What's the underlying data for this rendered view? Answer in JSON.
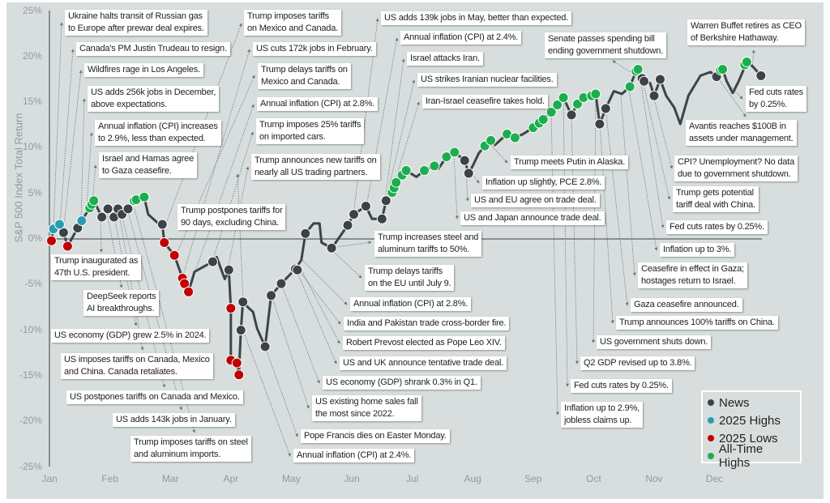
{
  "chart_data": {
    "type": "line",
    "ylabel": "S&P 500 Index Total Return",
    "ylim": [
      -25,
      25
    ],
    "yticks": [
      "25%",
      "20%",
      "15%",
      "10%",
      "5%",
      "0%",
      "-5%",
      "-10%",
      "-15%",
      "-20%",
      "-25%"
    ],
    "xticks": [
      "Jan",
      "Feb",
      "Mar",
      "Apr",
      "May",
      "Jun",
      "Jul",
      "Aug",
      "Sep",
      "Oct",
      "Nov",
      "Dec"
    ],
    "grid": false,
    "legend_position": "bottom-right",
    "colors": {
      "line": "#3d4448",
      "news": "#3c4247",
      "high": "#2a9db5",
      "low": "#c00000",
      "ath": "#1cae4e"
    },
    "series": [
      [
        "Jan 2",
        -0.2
      ],
      [
        "Jan 3",
        1.1
      ],
      [
        "Jan 6",
        1.6
      ],
      [
        "Jan 8",
        0.7
      ],
      [
        "Jan 10",
        -0.8
      ],
      [
        "Jan 15",
        1.2
      ],
      [
        "Jan 17",
        2.0
      ],
      [
        "Jan 21",
        3.4
      ],
      [
        "Jan 23",
        4.2
      ],
      [
        "Jan 27",
        2.4
      ],
      [
        "Jan 30",
        3.3
      ],
      [
        "Feb 3",
        2.4
      ],
      [
        "Feb 5",
        3.3
      ],
      [
        "Feb 7",
        2.7
      ],
      [
        "Feb 10",
        3.3
      ],
      [
        "Feb 13",
        4.2
      ],
      [
        "Feb 18",
        4.6
      ],
      [
        "Feb 20",
        2.7
      ],
      [
        "Feb 22",
        2.3
      ],
      [
        "Feb 26",
        1.5
      ],
      [
        "Feb 27",
        1.6
      ],
      [
        "Feb 28",
        -0.4
      ],
      [
        "Mar 3",
        -1.8
      ],
      [
        "Mar 7",
        -4.3
      ],
      [
        "Mar 8",
        -4.9
      ],
      [
        "Mar 10",
        -5.8
      ],
      [
        "Mar 13",
        -3.6
      ],
      [
        "Mar 17",
        -3.1
      ],
      [
        "Mar 22",
        -2.5
      ],
      [
        "Mar 24",
        -2.0
      ],
      [
        "Mar 28",
        -4.4
      ],
      [
        "Mar 30",
        -3.4
      ],
      [
        "Mar 31",
        -7.6
      ],
      [
        "Apr 1",
        -13.3
      ],
      [
        "Apr 4",
        -13.6
      ],
      [
        "Apr 5",
        -14.9
      ],
      [
        "Apr 6",
        -10.0
      ],
      [
        "Apr 7",
        -6.9
      ],
      [
        "Apr 10",
        -7.6
      ],
      [
        "Apr 12",
        -8.0
      ],
      [
        "Apr 14",
        -9.8
      ],
      [
        "Apr 18",
        -11.8
      ],
      [
        "Apr 21",
        -6.2
      ],
      [
        "Apr 26",
        -4.9
      ],
      [
        "May 3",
        -3.3
      ],
      [
        "May 6",
        -2.3
      ],
      [
        "May 8",
        0.6
      ],
      [
        "May 12",
        1.7
      ],
      [
        "May 15",
        1.7
      ],
      [
        "May 16",
        -0.4
      ],
      [
        "May 21",
        -1.0
      ],
      [
        "May 23",
        -0.4
      ],
      [
        "May 29",
        1.5
      ],
      [
        "Jun 2",
        2.7
      ],
      [
        "Jun 8",
        3.6
      ],
      [
        "Jun 11",
        2.2
      ],
      [
        "Jun 16",
        2.2
      ],
      [
        "Jun 18",
        4.2
      ],
      [
        "Jun 21",
        5.1
      ],
      [
        "Jun 23",
        6.2
      ],
      [
        "Jun 26",
        7.0
      ],
      [
        "Jun 28",
        7.5
      ],
      [
        "Jul 3",
        6.8
      ],
      [
        "Jul 7",
        7.5
      ],
      [
        "Jul 12",
        8.0
      ],
      [
        "Jul 14",
        7.7
      ],
      [
        "Jul 18",
        9.0
      ],
      [
        "Jul 22",
        9.5
      ],
      [
        "Jul 27",
        8.6
      ],
      [
        "Jul 29",
        7.2
      ],
      [
        "Jul 31",
        8.0
      ],
      [
        "Aug 4",
        9.4
      ],
      [
        "Aug 7",
        10.2
      ],
      [
        "Aug 10",
        10.8
      ],
      [
        "Aug 12",
        10.3
      ],
      [
        "Aug 18",
        11.5
      ],
      [
        "Aug 22",
        11.1
      ],
      [
        "Aug 26",
        11.5
      ],
      [
        "Aug 31",
        12.2
      ],
      [
        "Sep 4",
        12.7
      ],
      [
        "Sep 6",
        13.1
      ],
      [
        "Sep 10",
        13.9
      ],
      [
        "Sep 13",
        14.7
      ],
      [
        "Sep 16",
        15.5
      ],
      [
        "Sep 20",
        13.6
      ],
      [
        "Sep 23",
        14.8
      ],
      [
        "Sep 26",
        15.5
      ],
      [
        "Sep 30",
        15.7
      ],
      [
        "Oct 2",
        15.9
      ],
      [
        "Oct 4",
        12.6
      ],
      [
        "Oct 7",
        14.3
      ],
      [
        "Oct 11",
        16.2
      ],
      [
        "Oct 15",
        15.9
      ],
      [
        "Oct 19",
        16.7
      ],
      [
        "Oct 22",
        18.4
      ],
      [
        "Oct 25",
        17.6
      ],
      [
        "Oct 26",
        17.3
      ],
      [
        "Oct 29",
        17.1
      ],
      [
        "Oct 31",
        15.7
      ],
      [
        "Nov 4",
        17.5
      ],
      [
        "Nov 7",
        15.7
      ],
      [
        "Nov 11",
        14.4
      ],
      [
        "Nov 14",
        12.6
      ],
      [
        "Nov 18",
        15.7
      ],
      [
        "Nov 24",
        17.9
      ],
      [
        "Nov 29",
        18.3
      ],
      [
        "Dec 2",
        17.8
      ],
      [
        "Dec 5",
        18.6
      ],
      [
        "Dec 7",
        17.3
      ],
      [
        "Dec 10",
        16.0
      ],
      [
        "Dec 13",
        17.3
      ],
      [
        "Dec 17",
        19.4
      ],
      [
        "Dec 20",
        18.9
      ],
      [
        "Dec 24",
        17.9
      ]
    ],
    "markers": {
      "news": [
        [
          "Jan 8",
          0.7
        ],
        [
          "Jan 15",
          1.2
        ],
        [
          "Jan 27",
          2.4
        ],
        [
          "Jan 30",
          3.3
        ],
        [
          "Feb 3",
          2.4
        ],
        [
          "Feb 5",
          3.3
        ],
        [
          "Feb 7",
          2.7
        ],
        [
          "Feb 10",
          3.3
        ],
        [
          "Feb 27",
          1.6
        ],
        [
          "Mar 22",
          -2.5
        ],
        [
          "Mar 30",
          -3.4
        ],
        [
          "Apr 6",
          -10.0
        ],
        [
          "Apr 7",
          -6.9
        ],
        [
          "Apr 18",
          -11.8
        ],
        [
          "Apr 21",
          -6.2
        ],
        [
          "Apr 26",
          -4.9
        ],
        [
          "May 3",
          -3.3
        ],
        [
          "May 4",
          -3.4
        ],
        [
          "May 8",
          0.6
        ],
        [
          "May 21",
          -1.0
        ],
        [
          "May 29",
          1.5
        ],
        [
          "Jun 2",
          2.7
        ],
        [
          "Jun 8",
          3.6
        ],
        [
          "Jun 16",
          2.2
        ],
        [
          "Jun 18",
          4.2
        ],
        [
          "Jul 27",
          8.6
        ],
        [
          "Jul 29",
          7.2
        ],
        [
          "Sep 20",
          13.6
        ],
        [
          "Oct 4",
          12.6
        ],
        [
          "Oct 7",
          14.3
        ],
        [
          "Oct 25",
          17.6
        ],
        [
          "Oct 26",
          17.3
        ],
        [
          "Oct 31",
          15.7
        ],
        [
          "Nov 4",
          17.5
        ],
        [
          "Dec 2",
          17.8
        ],
        [
          "Dec 24",
          17.9
        ]
      ],
      "high": [
        [
          "Jan 3",
          1.1
        ],
        [
          "Jan 6",
          1.6
        ],
        [
          "Jan 17",
          2.0
        ]
      ],
      "low": [
        [
          "Jan 2",
          -0.2
        ],
        [
          "Jan 10",
          -0.8
        ],
        [
          "Feb 28",
          -0.4
        ],
        [
          "Mar 3",
          -1.8
        ],
        [
          "Mar 7",
          -4.3
        ],
        [
          "Mar 8",
          -4.9
        ],
        [
          "Mar 10",
          -5.8
        ],
        [
          "Mar 31",
          -7.6
        ],
        [
          "Apr 1",
          -13.3
        ],
        [
          "Apr 4",
          -13.6
        ],
        [
          "Apr 5",
          -14.9
        ]
      ],
      "ath": [
        [
          "Jan 21",
          3.4
        ],
        [
          "Jan 22",
          3.8
        ],
        [
          "Jan 23",
          4.2
        ],
        [
          "Feb 13",
          4.2
        ],
        [
          "Feb 14",
          4.3
        ],
        [
          "Feb 18",
          4.6
        ],
        [
          "Jun 21",
          5.1
        ],
        [
          "Jun 22",
          5.6
        ],
        [
          "Jun 23",
          6.2
        ],
        [
          "Jun 26",
          7.0
        ],
        [
          "Jun 28",
          7.5
        ],
        [
          "Jul 7",
          7.5
        ],
        [
          "Jul 12",
          8.0
        ],
        [
          "Jul 18",
          9.0
        ],
        [
          "Jul 22",
          9.5
        ],
        [
          "Aug 7",
          10.2
        ],
        [
          "Aug 10",
          10.8
        ],
        [
          "Aug 18",
          11.5
        ],
        [
          "Aug 22",
          11.1
        ],
        [
          "Aug 31",
          12.2
        ],
        [
          "Sep 4",
          12.7
        ],
        [
          "Sep 6",
          13.1
        ],
        [
          "Sep 10",
          13.9
        ],
        [
          "Sep 13",
          14.7
        ],
        [
          "Sep 16",
          15.5
        ],
        [
          "Sep 23",
          14.8
        ],
        [
          "Sep 26",
          15.5
        ],
        [
          "Sep 30",
          15.7
        ],
        [
          "Oct 2",
          15.9
        ],
        [
          "Oct 19",
          16.7
        ],
        [
          "Oct 22",
          18.4
        ],
        [
          "Oct 23",
          18.6
        ],
        [
          "Dec 4",
          18.5
        ],
        [
          "Dec 5",
          18.6
        ],
        [
          "Dec 16",
          19.1
        ],
        [
          "Dec 17",
          19.4
        ]
      ]
    },
    "annotations": [
      "Ukraine halts transit of Russian gas\nto Europe after prewar deal expires.",
      "Canada's PM Justin Trudeau to resign.",
      "Wildfires rage in Los Angeles.",
      "US adds 256k jobs in December,\nabove expectations.",
      "Annual inflation (CPI) increases\nto 2.9%, less than expected.",
      "Israel and Hamas agree\nto Gaza ceasefire.",
      "Trump inaugurated as\n47th U.S. president.",
      "DeepSeek reports\nAI breakthroughs.",
      "US economy (GDP) grew 2.5% in 2024.",
      "US imposes tariffs on Canada, Mexico\nand China. Canada retaliates.",
      "US postpones tariffs on Canada and Mexico.",
      "US adds 143k jobs in January.",
      "Trump imposes tariffs on steel\nand aluminum imports.",
      "Trump imposes tariffs\non Mexico and Canada.",
      "US cuts 172k jobs in February.",
      "Trump delays tariffs on\nMexico and Canada.",
      "Annual inflation (CPI) at 2.8%.",
      "Trump imposes 25% tariffs\non imported cars.",
      "Trump announces new tariffs on\nnearly all US trading partners.",
      "Trump postpones tariffs for\n90 days, excluding China.",
      "Trump increases steel and\naluminum tariffs to 50%.",
      "Trump delays tariffs\non the EU until July 9.",
      "Annual inflation (CPI) at 2.8%.",
      "India and Pakistan trade cross-border fire.",
      "Robert Prevost elected as Pope Leo XIV.",
      "US and UK announce tentative trade deal.",
      "US economy (GDP) shrank 0.3% in Q1.",
      "US existing home sales fall\nthe most since 2022.",
      "Pope Francis dies on Easter Monday.",
      "Annual inflation (CPI) at 2.4%.",
      "US adds 139k jobs in May, better than expected.",
      "Annual inflation (CPI) at 2.4%.",
      "Israel attacks Iran.",
      "US strikes Iranian nuclear facilities.",
      "Iran-Israel ceasefire takes hold.",
      "Trump meets Putin in Alaska.",
      "Inflation up slightly, PCE 2.8%.",
      "US and EU agree on trade deal.",
      "US and Japan announce trade deal.",
      "Senate passes spending bill\nending government shutdown.",
      "Warren Buffet retires as CEO\nof Berkshire Hathaway.",
      "Fed cuts rates\nby 0.25%.",
      "Avantis reaches $100B in\nassets under management.",
      "CPI? Unemployment? No data\ndue to government shutdown.",
      "Trump gets potential\ntariff deal with China.",
      "Fed cuts rates by 0.25%.",
      "Inflation up to 3%.",
      "Ceasefire in effect in Gaza;\nhostages return to Israel.",
      "Gaza ceasefire announced.",
      "Trump announces 100% tariffs on China.",
      "US government shuts down.",
      "Q2 GDP revised up to 3.8%.",
      "Fed cuts rates by 0.25%.",
      "Inflation up to 2.9%,\njobless claims up."
    ],
    "legend": [
      {
        "key": "news",
        "label": "News",
        "color": "#3c4247"
      },
      {
        "key": "high",
        "label": "2025 Highs",
        "color": "#2a9db5"
      },
      {
        "key": "low",
        "label": "2025 Lows",
        "color": "#c00000"
      },
      {
        "key": "ath",
        "label": "All-Time Highs",
        "color": "#1cae4e"
      }
    ]
  }
}
